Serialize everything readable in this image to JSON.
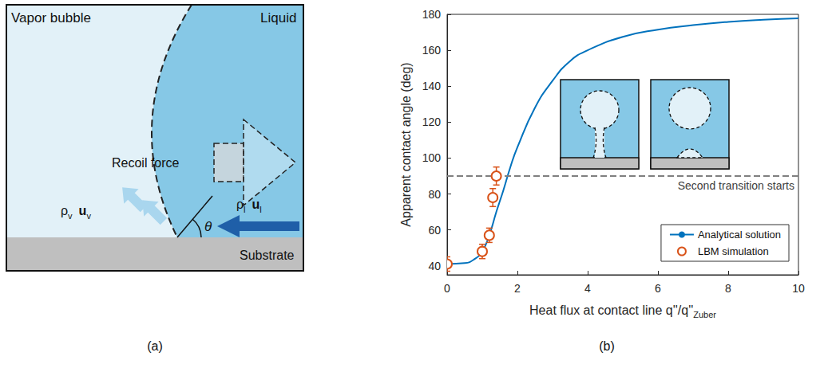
{
  "panel_a": {
    "caption": "(a)",
    "vapor_label": "Vapor bubble",
    "liquid_label": "Liquid",
    "force_label": "Recoil force",
    "substrate_label": "Substrate",
    "angle_label": "θ",
    "vapor_density": {
      "base": "ρ",
      "sub": "v"
    },
    "vapor_velocity": {
      "base": "u",
      "sub": "v"
    },
    "liquid_density": {
      "base": "ρ",
      "sub": "l"
    },
    "liquid_velocity": {
      "base": "u",
      "sub": "l"
    }
  },
  "chart_data": {
    "type": "line",
    "caption": "(b)",
    "xlabel": {
      "text": "Heat flux at contact line q''/q''",
      "sub": "Zuber"
    },
    "ylabel": "Apparent contact angle (deg)",
    "xlim": [
      0,
      10
    ],
    "xticks": [
      0,
      2,
      4,
      6,
      8,
      10
    ],
    "ylim": [
      35,
      180
    ],
    "yticks": [
      40,
      60,
      80,
      100,
      120,
      140,
      160,
      180
    ],
    "legend": "lower right",
    "series": [
      {
        "name": "Analytical solution",
        "type": "line",
        "color": "#0072BD",
        "x": [
          0,
          0.5,
          0.8,
          1.0,
          1.2,
          1.4,
          1.6,
          1.8,
          2.0,
          2.5,
          3.0,
          3.5,
          4.0,
          5.0,
          6.0,
          7.0,
          8.0,
          9.0,
          10.0
        ],
        "values": [
          41,
          41.5,
          44,
          48,
          57,
          70,
          82,
          95,
          106,
          128,
          143,
          154,
          160,
          167.5,
          171.5,
          174,
          175.8,
          177,
          177.8
        ]
      },
      {
        "name": "LBM simulation",
        "type": "scatter",
        "marker": "circle",
        "color": "#D95319",
        "x": [
          0,
          1.0,
          1.2,
          1.3,
          1.4
        ],
        "values": [
          41,
          48,
          57,
          78,
          90
        ],
        "x_error": [
          0.08,
          0.1,
          0.1,
          0.1,
          0.1
        ],
        "y_error": [
          4,
          4,
          4,
          5,
          5
        ]
      }
    ],
    "hline": {
      "value": 90,
      "label": "Second transition starts",
      "line_style": "dashed"
    }
  }
}
